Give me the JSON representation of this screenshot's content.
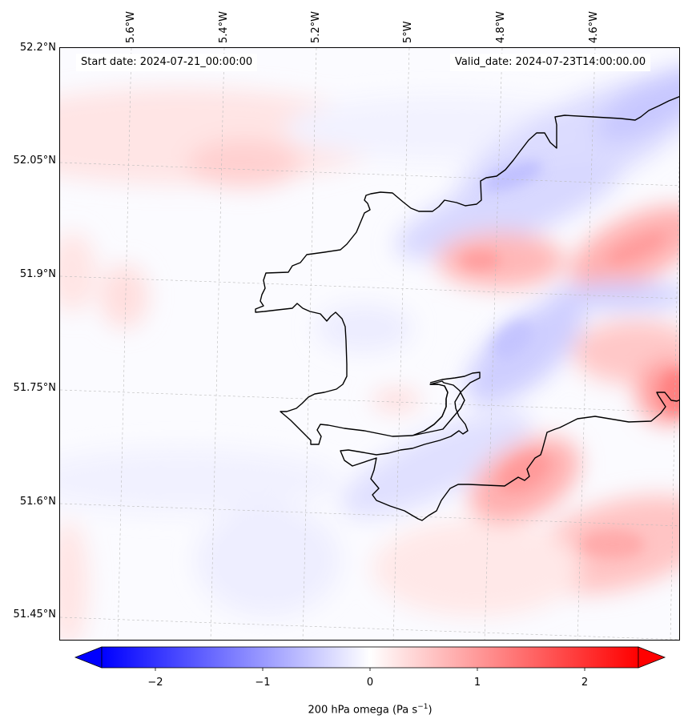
{
  "map": {
    "start_date": "Start date: 2024-07-21_00:00:00",
    "valid_date": "Valid_date: 2024-07-23T14:00:00.00",
    "lat_labels": [
      "52.2°N",
      "52.05°N",
      "51.9°N",
      "51.75°N",
      "51.6°N",
      "51.45°N"
    ],
    "lon_labels": [
      "5.6°W",
      "5.4°W",
      "5.2°W",
      "5°W",
      "4.8°W",
      "4.6°W"
    ],
    "variable": "200 hPa omega",
    "units": "Pa s",
    "units_exponent": "−1"
  },
  "colorbar": {
    "min": -2.6,
    "max": 2.6,
    "ticks": [
      {
        "value": -2,
        "label": "−2"
      },
      {
        "value": -1,
        "label": "−1"
      },
      {
        "value": 0,
        "label": "0"
      },
      {
        "value": 1,
        "label": "1"
      },
      {
        "value": 2,
        "label": "2"
      }
    ],
    "negative_color": "#0000ff",
    "positive_color": "#ff0000",
    "colormap": "bwr"
  },
  "colors": {
    "coastline": "#000000",
    "gridline": "#bbbbbb",
    "background": "#fbfbff"
  }
}
